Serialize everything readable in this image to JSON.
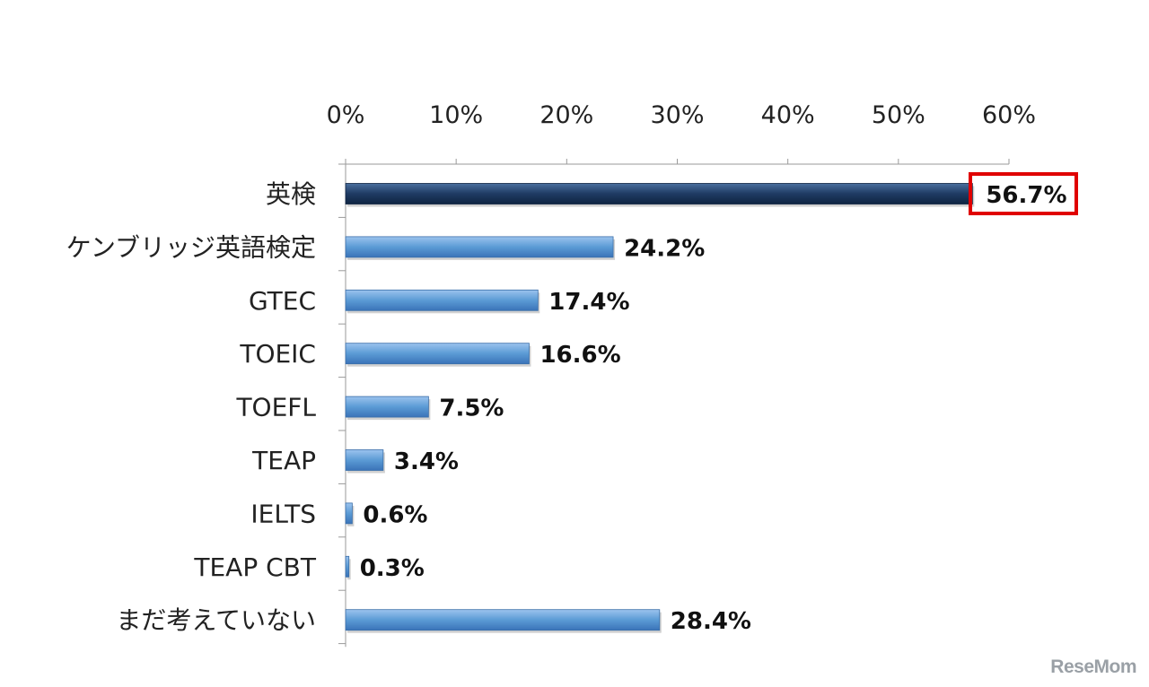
{
  "chart_data": {
    "type": "bar",
    "orientation": "horizontal",
    "categories": [
      "英検",
      "ケンブリッジ英語検定",
      "GTEC",
      "TOEIC",
      "TOEFL",
      "TEAP",
      "IELTS",
      "TEAP CBT",
      "まだ考えていない"
    ],
    "values": [
      56.7,
      24.2,
      17.4,
      16.6,
      7.5,
      3.4,
      0.6,
      0.3,
      28.4
    ],
    "value_labels": [
      "56.7%",
      "24.2%",
      "17.4%",
      "16.6%",
      "7.5%",
      "3.4%",
      "0.6%",
      "0.3%",
      "28.4%"
    ],
    "xlim": [
      0,
      60
    ],
    "x_ticks": [
      0,
      10,
      20,
      30,
      40,
      50,
      60
    ],
    "x_tick_labels": [
      "0%",
      "10%",
      "20%",
      "30%",
      "40%",
      "50%",
      "60%"
    ],
    "axis_position": "top",
    "grid": false,
    "highlight_index": 0,
    "colors": {
      "bar": "#5b9bd5",
      "bar_highlight": "#1f3b63",
      "highlight_box": "#e00000",
      "axis": "#9a9a9a"
    }
  },
  "watermark": "ReseMom"
}
